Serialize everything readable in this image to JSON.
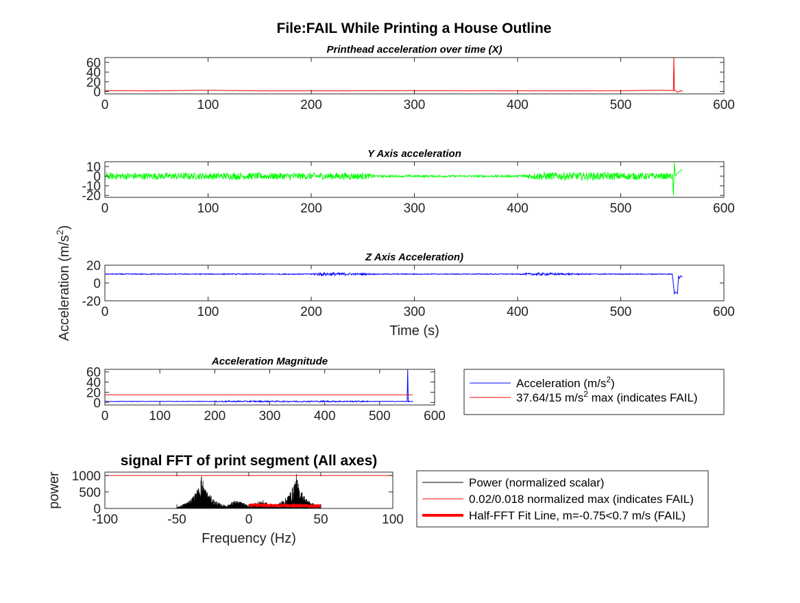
{
  "figure": {
    "title": "File:FAIL While Printing a House Outline"
  },
  "chart_data": [
    {
      "type": "line",
      "title": "Printhead acceleration over time (X)",
      "xlabel": "",
      "ylabel": "",
      "xlim": [
        0,
        600
      ],
      "ylim": [
        -5,
        70
      ],
      "xticks": [
        0,
        100,
        200,
        300,
        400,
        500,
        600
      ],
      "yticks": [
        0,
        20,
        40,
        60
      ],
      "series": [
        {
          "color": "#ff0000",
          "x": [
            0,
            50,
            100,
            150,
            200,
            250,
            300,
            350,
            400,
            450,
            500,
            540,
            551,
            551.5,
            552,
            553,
            555,
            558,
            560
          ],
          "y": [
            1.5,
            1.4,
            2.5,
            1.2,
            1.3,
            1.5,
            1.6,
            1.4,
            1.3,
            1.4,
            1.5,
            2.5,
            2.0,
            70,
            1.0,
            2.0,
            -1.5,
            1.5,
            0.5
          ]
        }
      ],
      "grid": false
    },
    {
      "type": "line",
      "title": "Y Axis acceleration",
      "xlabel": "",
      "ylabel": "",
      "xlim": [
        0,
        600
      ],
      "ylim": [
        -22,
        15
      ],
      "xticks": [
        0,
        100,
        200,
        300,
        400,
        500,
        600
      ],
      "yticks": [
        -20,
        -10,
        0,
        10
      ],
      "series": [
        {
          "color": "#00ff00",
          "x": [
            0,
            50,
            100,
            150,
            200,
            250,
            265,
            300,
            350,
            400,
            420,
            450,
            500,
            550,
            551,
            552,
            553,
            555,
            558,
            560
          ],
          "y": [
            0,
            0,
            0,
            0,
            0,
            0,
            0,
            0,
            0,
            0,
            0,
            0,
            0,
            0,
            -20,
            14,
            0,
            3,
            6,
            7
          ],
          "noise_amplitude": [
            3.5,
            3.5,
            3.5,
            3.5,
            3.5,
            3.5,
            1.0,
            1.0,
            1.0,
            1.0,
            4.0,
            4.0,
            4.0,
            3.0,
            0,
            0,
            0,
            0,
            0,
            0
          ]
        }
      ],
      "grid": false
    },
    {
      "type": "line",
      "title": "Z Axis Acceleration)",
      "xlabel": "Time (s)",
      "ylabel": "Acceleration (m/s²)",
      "xlim": [
        0,
        600
      ],
      "ylim": [
        -20,
        20
      ],
      "xticks": [
        0,
        100,
        200,
        300,
        400,
        500,
        600
      ],
      "yticks": [
        -20,
        0,
        20
      ],
      "series": [
        {
          "color": "#0000ff",
          "x": [
            0,
            50,
            100,
            150,
            200,
            210,
            265,
            300,
            350,
            400,
            420,
            480,
            500,
            550,
            552,
            553,
            555,
            556,
            557,
            558,
            560
          ],
          "y": [
            10,
            10,
            10,
            10,
            10,
            10,
            10,
            10,
            10,
            10,
            10,
            10,
            10,
            10,
            -12,
            -10,
            -12,
            8,
            5,
            8,
            7
          ],
          "noise_amplitude": [
            0.5,
            0.5,
            0.5,
            0.5,
            0.5,
            2.0,
            0.5,
            0.5,
            0.5,
            0.5,
            1.5,
            0.5,
            0.5,
            0.5,
            0,
            0,
            0,
            0,
            0,
            0,
            0
          ]
        }
      ],
      "grid": false
    },
    {
      "type": "line",
      "title": "Acceleration Magnitude",
      "xlabel": "",
      "ylabel": "",
      "xlim": [
        0,
        600
      ],
      "ylim": [
        -5,
        65
      ],
      "xticks": [
        0,
        100,
        200,
        300,
        400,
        500,
        600
      ],
      "yticks": [
        0,
        20,
        40,
        60
      ],
      "series": [
        {
          "name": "Acceleration (m/s²)",
          "color": "#0000ff",
          "x": [
            0,
            100,
            200,
            265,
            300,
            400,
            500,
            550,
            551,
            552,
            553,
            560
          ],
          "y": [
            2,
            2,
            2,
            2,
            2,
            2,
            2,
            2,
            65,
            1,
            2,
            2
          ]
        },
        {
          "name": "37.64/15 m/s² max (indicates FAIL)",
          "color": "#ff0000",
          "x": [
            0,
            560
          ],
          "y": [
            15,
            15
          ]
        }
      ],
      "legend": {
        "placement": "right",
        "entries": [
          "Acceleration (m/s²)",
          "37.64/15 m/s² max (indicates FAIL)"
        ]
      },
      "grid": false
    },
    {
      "type": "line",
      "title": "signal FFT of print segment (All axes)",
      "xlabel": "Frequency (Hz)",
      "ylabel": "power",
      "xlim": [
        -100,
        100
      ],
      "ylim": [
        0,
        1100
      ],
      "xticks": [
        -100,
        -50,
        0,
        50,
        100
      ],
      "yticks": [
        0,
        500,
        1000
      ],
      "series": [
        {
          "name": "Power (normalized scalar)",
          "color": "#000000",
          "x": [
            -50,
            -45,
            -40,
            -35,
            -33,
            -30,
            -25,
            -20,
            -15,
            -10,
            -5,
            0,
            5,
            10,
            15,
            20,
            25,
            30,
            33,
            35,
            40,
            45,
            50
          ],
          "y": [
            40,
            150,
            300,
            650,
            1050,
            600,
            300,
            150,
            100,
            250,
            200,
            80,
            200,
            250,
            100,
            150,
            300,
            600,
            1050,
            650,
            300,
            150,
            40
          ]
        },
        {
          "name": "0.02/0.018 normalized max (indicates FAIL)",
          "color": "#ff0000",
          "x": [
            -100,
            100
          ],
          "y": [
            1000,
            1000
          ]
        },
        {
          "name": "Half-FFT Fit Line, m=-0.75<0.7 m/s (FAIL)",
          "color": "#ff0000",
          "x": [
            0,
            50
          ],
          "y": [
            100,
            75
          ]
        }
      ],
      "legend": {
        "placement": "right",
        "entries": [
          "Power (normalized scalar)",
          "0.02/0.018 normalized max (indicates FAIL)",
          "Half-FFT Fit Line, m=-0.75<0.7 m/s (FAIL)"
        ]
      },
      "grid": false
    }
  ]
}
